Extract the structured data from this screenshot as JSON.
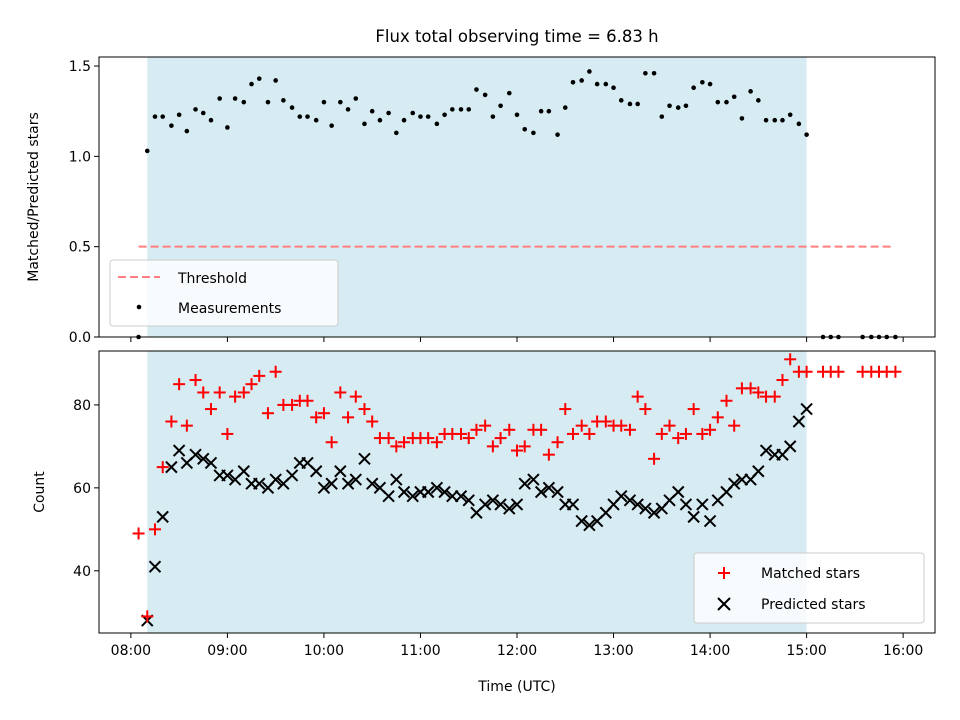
{
  "title": "Flux total observing time = 6.83 h",
  "colors": {
    "shade": "#add8e6",
    "threshold": "#ff7f7f",
    "matched": "#ff0000",
    "predicted": "#000000",
    "ratio": "#000000"
  },
  "chart_data": [
    {
      "type": "scatter",
      "panel": "top",
      "ylabel": "Matched/Predicted stars",
      "xlim": [
        7.67,
        16.33
      ],
      "ylim": [
        0.0,
        1.55
      ],
      "yticks": [
        0.0,
        0.5,
        1.0,
        1.5
      ],
      "ytick_labels": [
        "0.0",
        "0.5",
        "1.0",
        "1.5"
      ],
      "shaded_span": [
        8.17,
        15.0
      ],
      "threshold": {
        "label": "Threshold",
        "y": 0.5,
        "x": [
          8.08,
          15.9
        ]
      },
      "series": [
        {
          "name": "Measurements",
          "x": [
            8.08,
            8.17,
            8.25,
            8.33,
            8.42,
            8.5,
            8.58,
            8.67,
            8.75,
            8.83,
            8.92,
            9.0,
            9.08,
            9.17,
            9.25,
            9.33,
            9.42,
            9.5,
            9.58,
            9.67,
            9.75,
            9.83,
            9.92,
            10.0,
            10.08,
            10.17,
            10.25,
            10.33,
            10.42,
            10.5,
            10.58,
            10.67,
            10.75,
            10.83,
            10.92,
            11.0,
            11.08,
            11.17,
            11.25,
            11.33,
            11.42,
            11.5,
            11.58,
            11.67,
            11.75,
            11.83,
            11.92,
            12.0,
            12.08,
            12.17,
            12.25,
            12.33,
            12.42,
            12.5,
            12.58,
            12.67,
            12.75,
            12.83,
            12.92,
            13.0,
            13.08,
            13.17,
            13.25,
            13.33,
            13.42,
            13.5,
            13.58,
            13.67,
            13.75,
            13.83,
            13.92,
            14.0,
            14.08,
            14.17,
            14.25,
            14.33,
            14.42,
            14.5,
            14.58,
            14.67,
            14.75,
            14.83,
            14.92,
            15.0,
            15.17,
            15.25,
            15.33,
            15.58,
            15.67,
            15.75,
            15.83,
            15.92
          ],
          "y": [
            0.0,
            1.03,
            1.22,
            1.22,
            1.17,
            1.23,
            1.14,
            1.26,
            1.24,
            1.2,
            1.32,
            1.16,
            1.32,
            1.3,
            1.4,
            1.43,
            1.3,
            1.42,
            1.31,
            1.27,
            1.22,
            1.22,
            1.2,
            1.3,
            1.17,
            1.3,
            1.26,
            1.32,
            1.18,
            1.25,
            1.2,
            1.24,
            1.13,
            1.2,
            1.24,
            1.22,
            1.22,
            1.18,
            1.23,
            1.26,
            1.26,
            1.26,
            1.37,
            1.34,
            1.22,
            1.28,
            1.35,
            1.23,
            1.15,
            1.13,
            1.25,
            1.25,
            1.12,
            1.27,
            1.41,
            1.42,
            1.47,
            1.4,
            1.4,
            1.38,
            1.31,
            1.29,
            1.29,
            1.46,
            1.46,
            1.22,
            1.28,
            1.27,
            1.28,
            1.38,
            1.41,
            1.4,
            1.3,
            1.3,
            1.33,
            1.21,
            1.36,
            1.31,
            1.2,
            1.2,
            1.2,
            1.23,
            1.18,
            1.12,
            0.0,
            0.0,
            0.0,
            0.0,
            0.0,
            0.0,
            0.0,
            0.0
          ]
        }
      ],
      "legend": {
        "placement": "lower-left",
        "entries": [
          "Threshold",
          "Measurements"
        ]
      }
    },
    {
      "type": "scatter",
      "panel": "bottom",
      "xlabel": "Time (UTC)",
      "ylabel": "Count",
      "xlim": [
        7.67,
        16.33
      ],
      "ylim": [
        25,
        93
      ],
      "yticks": [
        40,
        60,
        80
      ],
      "ytick_labels": [
        "40",
        "60",
        "80"
      ],
      "xticks": [
        8,
        9,
        10,
        11,
        12,
        13,
        14,
        15,
        16
      ],
      "xtick_labels": [
        "08:00",
        "09:00",
        "10:00",
        "11:00",
        "12:00",
        "13:00",
        "14:00",
        "15:00",
        "16:00"
      ],
      "shaded_span": [
        8.17,
        15.0
      ],
      "series": [
        {
          "name": "Matched stars",
          "marker": "plus",
          "x": [
            8.08,
            8.17,
            8.25,
            8.33,
            8.42,
            8.5,
            8.58,
            8.67,
            8.75,
            8.83,
            8.92,
            9.0,
            9.08,
            9.17,
            9.25,
            9.33,
            9.42,
            9.5,
            9.58,
            9.67,
            9.75,
            9.83,
            9.92,
            10.0,
            10.08,
            10.17,
            10.25,
            10.33,
            10.42,
            10.5,
            10.58,
            10.67,
            10.75,
            10.83,
            10.92,
            11.0,
            11.08,
            11.17,
            11.25,
            11.33,
            11.42,
            11.5,
            11.58,
            11.67,
            11.75,
            11.83,
            11.92,
            12.0,
            12.08,
            12.17,
            12.25,
            12.33,
            12.42,
            12.5,
            12.58,
            12.67,
            12.75,
            12.83,
            12.92,
            13.0,
            13.08,
            13.17,
            13.25,
            13.33,
            13.42,
            13.5,
            13.58,
            13.67,
            13.75,
            13.83,
            13.92,
            14.0,
            14.08,
            14.17,
            14.25,
            14.33,
            14.42,
            14.5,
            14.58,
            14.67,
            14.75,
            14.83,
            14.92,
            15.0,
            15.17,
            15.25,
            15.33,
            15.58,
            15.67,
            15.75,
            15.83,
            15.92
          ],
          "y": [
            49,
            29,
            50,
            65,
            76,
            85,
            75,
            86,
            83,
            79,
            83,
            73,
            82,
            83,
            85,
            87,
            78,
            88,
            80,
            80,
            81,
            81,
            77,
            78,
            71,
            83,
            77,
            82,
            79,
            76,
            72,
            72,
            70,
            71,
            72,
            72,
            72,
            71,
            73,
            73,
            73,
            72,
            74,
            75,
            70,
            72,
            74,
            69,
            70,
            74,
            74,
            68,
            71,
            79,
            73,
            75,
            73,
            76,
            76,
            75,
            75,
            74,
            82,
            79,
            67,
            73,
            75,
            72,
            73,
            79,
            73,
            74,
            77,
            81,
            75,
            84,
            84,
            83,
            82,
            82,
            86,
            91,
            88,
            88,
            88,
            88,
            88,
            88,
            88,
            88,
            88,
            88
          ],
          "color": "#ff0000"
        },
        {
          "name": "Predicted stars",
          "marker": "x",
          "x": [
            8.17,
            8.25,
            8.33,
            8.42,
            8.5,
            8.58,
            8.67,
            8.75,
            8.83,
            8.92,
            9.0,
            9.08,
            9.17,
            9.25,
            9.33,
            9.42,
            9.5,
            9.58,
            9.67,
            9.75,
            9.83,
            9.92,
            10.0,
            10.08,
            10.17,
            10.25,
            10.33,
            10.42,
            10.5,
            10.58,
            10.67,
            10.75,
            10.83,
            10.92,
            11.0,
            11.08,
            11.17,
            11.25,
            11.33,
            11.42,
            11.5,
            11.58,
            11.67,
            11.75,
            11.83,
            11.92,
            12.0,
            12.08,
            12.17,
            12.25,
            12.33,
            12.42,
            12.5,
            12.58,
            12.67,
            12.75,
            12.83,
            12.92,
            13.0,
            13.08,
            13.17,
            13.25,
            13.33,
            13.42,
            13.5,
            13.58,
            13.67,
            13.75,
            13.83,
            13.92,
            14.0,
            14.08,
            14.17,
            14.25,
            14.33,
            14.42,
            14.5,
            14.58,
            14.67,
            14.75,
            14.83,
            14.92,
            15.0
          ],
          "y": [
            28,
            41,
            53,
            65,
            69,
            66,
            68,
            67,
            66,
            63,
            63,
            62,
            64,
            61,
            61,
            60,
            62,
            61,
            63,
            66,
            66,
            64,
            60,
            61,
            64,
            61,
            62,
            67,
            61,
            60,
            58,
            62,
            59,
            58,
            59,
            59,
            60,
            59,
            58,
            58,
            57,
            54,
            56,
            57,
            56,
            55,
            56,
            61,
            62,
            59,
            60,
            59,
            56,
            56,
            52,
            51,
            52,
            54,
            56,
            58,
            57,
            56,
            55,
            54,
            55,
            57,
            59,
            56,
            53,
            56,
            52,
            57,
            59,
            61,
            62,
            62,
            64,
            69,
            68,
            68,
            70,
            76,
            79
          ],
          "color": "#000000"
        }
      ],
      "legend": {
        "placement": "lower-right",
        "entries": [
          "Matched stars",
          "Predicted stars"
        ]
      }
    }
  ]
}
